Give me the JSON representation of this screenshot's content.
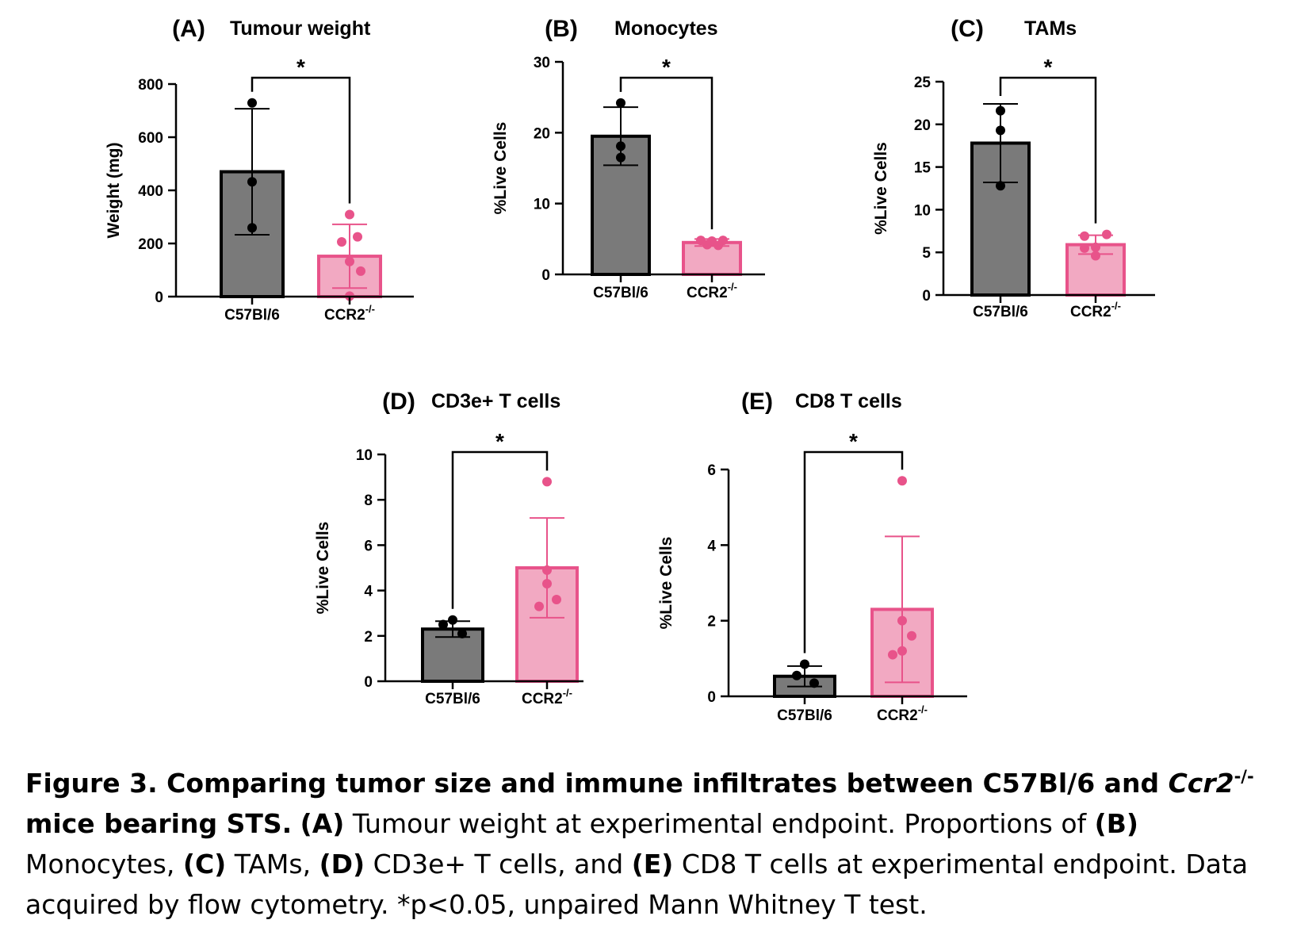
{
  "colors": {
    "c57_fill": "#7a7a7a",
    "c57_stroke": "#000000",
    "c57_point": "#000000",
    "ccr2_fill": "#f2a9c2",
    "ccr2_stroke": "#e8538a",
    "ccr2_point": "#e8538a"
  },
  "chart_data": [
    {
      "type": "bar",
      "panel": "(A)",
      "title": "Tumour weight",
      "ylabel": "Weight (mg)",
      "categories": [
        "C57Bl/6",
        "CCR2-/-"
      ],
      "ylim": [
        0,
        800
      ],
      "yticks": [
        0,
        200,
        400,
        600,
        800
      ],
      "means": [
        470,
        152
      ],
      "sd": [
        237,
        120
      ],
      "points": [
        [
          729,
          432,
          259
        ],
        [
          309,
          225,
          206,
          132,
          96,
          2
        ]
      ],
      "significance": "*"
    },
    {
      "type": "bar",
      "panel": "(B)",
      "title": "Monocytes",
      "ylabel": "%Live Cells",
      "categories": [
        "C57Bl/6",
        "CCR2-/-"
      ],
      "ylim": [
        0,
        30
      ],
      "yticks": [
        0,
        10,
        20,
        30
      ],
      "means": [
        19.5,
        4.5
      ],
      "sd": [
        4.1,
        0.5
      ],
      "points": [
        [
          24.2,
          18.1,
          16.5
        ],
        [
          4.8,
          4.8,
          4.7,
          4.2,
          4.1
        ]
      ],
      "significance": "*"
    },
    {
      "type": "bar",
      "panel": "(C)",
      "title": "TAMs",
      "ylabel": "%Live Cells",
      "categories": [
        "C57Bl/6",
        "CCR2-/-"
      ],
      "ylim": [
        0,
        25
      ],
      "yticks": [
        0,
        5,
        10,
        15,
        20,
        25
      ],
      "means": [
        17.8,
        5.9
      ],
      "sd": [
        4.6,
        1.1
      ],
      "points": [
        [
          21.6,
          19.3,
          12.8
        ],
        [
          7.1,
          6.9,
          5.6,
          5.5,
          4.6
        ]
      ],
      "significance": "*"
    },
    {
      "type": "bar",
      "panel": "(D)",
      "title": "CD3e+ T cells",
      "ylabel": "%Live Cells",
      "categories": [
        "C57Bl/6",
        "CCR2-/-"
      ],
      "ylim": [
        0,
        10
      ],
      "yticks": [
        0,
        2,
        4,
        6,
        8,
        10
      ],
      "means": [
        2.3,
        5.0
      ],
      "sd": [
        0.35,
        2.2
      ],
      "points": [
        [
          2.7,
          2.5,
          2.1
        ],
        [
          8.8,
          4.9,
          4.3,
          3.6,
          3.3
        ]
      ],
      "significance": "*"
    },
    {
      "type": "bar",
      "panel": "(E)",
      "title": "CD8 T cells",
      "ylabel": "%Live Cells",
      "categories": [
        "C57Bl/6",
        "CCR2-/-"
      ],
      "ylim": [
        0,
        6
      ],
      "yticks": [
        0,
        2,
        4,
        6
      ],
      "means": [
        0.53,
        2.3
      ],
      "sd": [
        0.27,
        1.93
      ],
      "points": [
        [
          0.85,
          0.55,
          0.35
        ],
        [
          5.7,
          2.0,
          1.6,
          1.2,
          1.1
        ]
      ],
      "significance": "*"
    }
  ],
  "caption": {
    "title_part1": "Figure 3. Comparing tumor size and immune infiltrates between C57Bl/6 and ",
    "title_italic": "Ccr2",
    "title_sup": "-/-",
    "title_part2": " mice bearing STS.",
    "a_label": "(A)",
    "a_text": " Tumour weight at experimental endpoint. Proportions of ",
    "b_label": "(B)",
    "b_text": " Monocytes, ",
    "c_label": "(C)",
    "c_text": " TAMs, ",
    "d_label": "(D)",
    "d_text": " CD3e+ T cells, and ",
    "e_label": "(E)",
    "e_text": " CD8 T cells at experimental endpoint. Data acquired by flow cytometry. *p<0.05, unpaired Mann Whitney T test."
  }
}
